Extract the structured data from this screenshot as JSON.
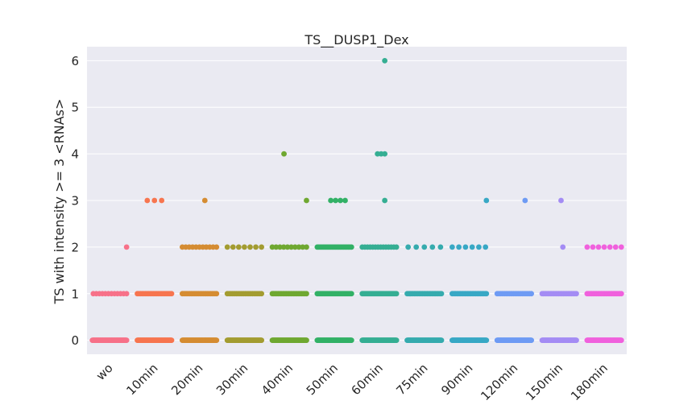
{
  "chart_data": {
    "type": "strip",
    "title": "TS__DUSP1_Dex",
    "xlabel": "",
    "ylabel": "TS with intensity >= 3 <RNAs>",
    "ylim": [
      -0.3,
      6.3
    ],
    "yticks": [
      0,
      1,
      2,
      3,
      4,
      5,
      6
    ],
    "grid": true,
    "legend": "none",
    "background_color": "#eaeaf2",
    "categories": [
      "wo",
      "10min",
      "20min",
      "30min",
      "40min",
      "50min",
      "60min",
      "75min",
      "90min",
      "120min",
      "150min",
      "180min"
    ],
    "colors": [
      "#f77189",
      "#f7754f",
      "#d58c32",
      "#a39c31",
      "#6fa831",
      "#32b166",
      "#35ae93",
      "#36abae",
      "#38a8c5",
      "#6e9bf4",
      "#a48cf4",
      "#f061dd"
    ],
    "series": [
      {
        "category": "wo",
        "points": [
          {
            "y": 0,
            "spread": [
              -0.95,
              0.95
            ],
            "count": 80
          },
          {
            "y": 1,
            "spread": [
              -0.9,
              0.95
            ],
            "count": 12
          },
          {
            "y": 2,
            "spread": [
              0.95,
              0.95
            ],
            "count": 1
          }
        ]
      },
      {
        "category": "10min",
        "points": [
          {
            "y": 0,
            "spread": [
              -0.95,
              0.95
            ],
            "count": 80
          },
          {
            "y": 1,
            "spread": [
              -0.95,
              0.95
            ],
            "count": 22
          },
          {
            "y": 3,
            "spread": [
              -0.4,
              0.4
            ],
            "count": 3
          }
        ]
      },
      {
        "category": "20min",
        "points": [
          {
            "y": 0,
            "spread": [
              -0.95,
              0.95
            ],
            "count": 80
          },
          {
            "y": 1,
            "spread": [
              -0.95,
              0.95
            ],
            "count": 24
          },
          {
            "y": 2,
            "spread": [
              -0.95,
              0.95
            ],
            "count": 11
          },
          {
            "y": 3,
            "spread": [
              0.3,
              0.3
            ],
            "count": 1
          }
        ]
      },
      {
        "category": "30min",
        "points": [
          {
            "y": 0,
            "spread": [
              -0.95,
              0.95
            ],
            "count": 80
          },
          {
            "y": 1,
            "spread": [
              -0.95,
              0.95
            ],
            "count": 20
          },
          {
            "y": 2,
            "spread": [
              -0.95,
              0.95
            ],
            "count": 7
          }
        ]
      },
      {
        "category": "40min",
        "points": [
          {
            "y": 0,
            "spread": [
              -0.95,
              0.95
            ],
            "count": 80
          },
          {
            "y": 1,
            "spread": [
              -0.95,
              0.95
            ],
            "count": 30
          },
          {
            "y": 2,
            "spread": [
              -0.95,
              0.95
            ],
            "count": 10
          },
          {
            "y": 3,
            "spread": [
              0.95,
              0.95
            ],
            "count": 1
          },
          {
            "y": 4,
            "spread": [
              -0.3,
              -0.3
            ],
            "count": 1
          }
        ]
      },
      {
        "category": "50min",
        "points": [
          {
            "y": 0,
            "spread": [
              -0.95,
              0.95
            ],
            "count": 80
          },
          {
            "y": 1,
            "spread": [
              -0.95,
              0.95
            ],
            "count": 40
          },
          {
            "y": 2,
            "spread": [
              -0.95,
              0.95
            ],
            "count": 22
          },
          {
            "y": 3,
            "spread": [
              -0.2,
              0.6
            ],
            "count": 4
          }
        ]
      },
      {
        "category": "60min",
        "points": [
          {
            "y": 0,
            "spread": [
              -0.95,
              0.95
            ],
            "count": 80
          },
          {
            "y": 1,
            "spread": [
              -0.95,
              0.95
            ],
            "count": 40
          },
          {
            "y": 2,
            "spread": [
              -0.95,
              0.95
            ],
            "count": 14
          },
          {
            "y": 3,
            "spread": [
              0.3,
              0.3
            ],
            "count": 1
          },
          {
            "y": 4,
            "spread": [
              -0.1,
              0.3
            ],
            "count": 3
          },
          {
            "y": 6,
            "spread": [
              0.3,
              0.3
            ],
            "count": 1
          }
        ]
      },
      {
        "category": "75min",
        "points": [
          {
            "y": 0,
            "spread": [
              -0.95,
              0.95
            ],
            "count": 80
          },
          {
            "y": 1,
            "spread": [
              -0.95,
              0.95
            ],
            "count": 30
          },
          {
            "y": 2,
            "spread": [
              -0.9,
              0.9
            ],
            "count": 5
          }
        ]
      },
      {
        "category": "90min",
        "points": [
          {
            "y": 0,
            "spread": [
              -0.95,
              0.95
            ],
            "count": 80
          },
          {
            "y": 1,
            "spread": [
              -0.95,
              0.95
            ],
            "count": 30
          },
          {
            "y": 2,
            "spread": [
              -0.95,
              0.9
            ],
            "count": 6
          },
          {
            "y": 3,
            "spread": [
              0.95,
              0.95
            ],
            "count": 1
          }
        ]
      },
      {
        "category": "120min",
        "points": [
          {
            "y": 0,
            "spread": [
              -0.95,
              0.95
            ],
            "count": 80
          },
          {
            "y": 1,
            "spread": [
              -0.95,
              0.95
            ],
            "count": 20
          },
          {
            "y": 3,
            "spread": [
              0.6,
              0.6
            ],
            "count": 1
          }
        ]
      },
      {
        "category": "150min",
        "points": [
          {
            "y": 0,
            "spread": [
              -0.95,
              0.95
            ],
            "count": 80
          },
          {
            "y": 1,
            "spread": [
              -0.95,
              0.95
            ],
            "count": 30
          },
          {
            "y": 2,
            "spread": [
              0.2,
              0.2
            ],
            "count": 1
          },
          {
            "y": 3,
            "spread": [
              0.1,
              0.1
            ],
            "count": 1
          }
        ]
      },
      {
        "category": "180min",
        "points": [
          {
            "y": 0,
            "spread": [
              -0.95,
              0.95
            ],
            "count": 80
          },
          {
            "y": 1,
            "spread": [
              -0.95,
              0.95
            ],
            "count": 30
          },
          {
            "y": 2,
            "spread": [
              -0.95,
              0.95
            ],
            "count": 7
          }
        ]
      }
    ]
  }
}
